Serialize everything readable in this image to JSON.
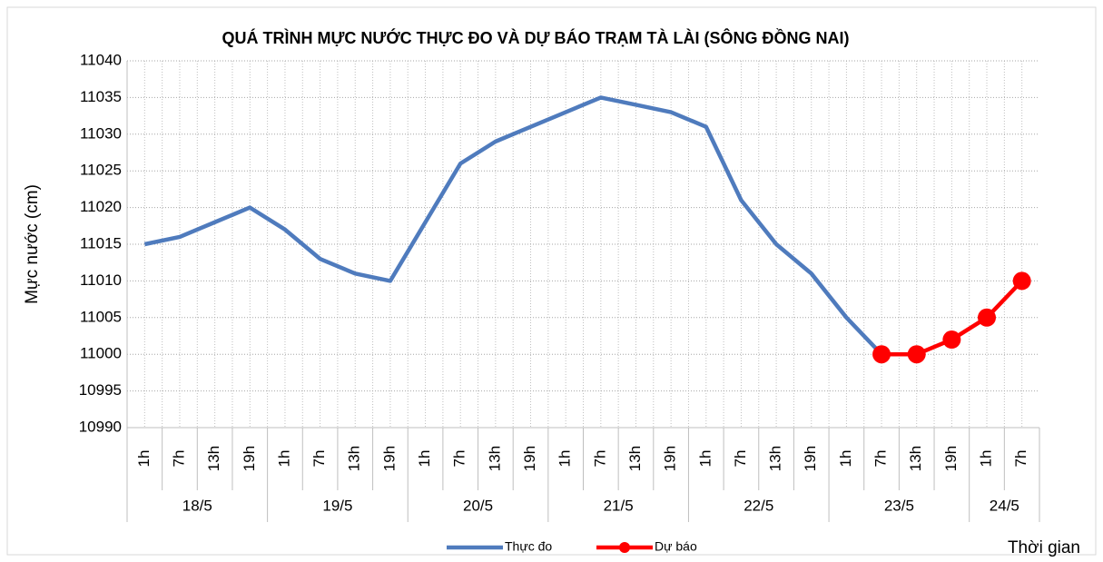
{
  "chart_data": {
    "type": "line",
    "title": "QUÁ TRÌNH MỰC NƯỚC THỰC ĐO VÀ DỰ BÁO TRẠM TÀ LÀI (SÔNG ĐỒNG NAI)",
    "y_label": "Mực nước (cm)",
    "x_label": "Thời gian",
    "groups": [
      {
        "label": "18/5",
        "categories": [
          "1h",
          "7h",
          "13h",
          "19h"
        ]
      },
      {
        "label": "19/5",
        "categories": [
          "1h",
          "7h",
          "13h",
          "19h"
        ]
      },
      {
        "label": "20/5",
        "categories": [
          "1h",
          "7h",
          "13h",
          "19h"
        ]
      },
      {
        "label": "21/5",
        "categories": [
          "1h",
          "7h",
          "13h",
          "19h"
        ]
      },
      {
        "label": "22/5",
        "categories": [
          "1h",
          "7h",
          "13h",
          "19h"
        ]
      },
      {
        "label": "23/5",
        "categories": [
          "1h",
          "7h",
          "13h",
          "19h"
        ]
      },
      {
        "label": "24/5",
        "categories": [
          "1h",
          "7h"
        ]
      }
    ],
    "series": [
      {
        "name": "Thực đo",
        "color": "#4f7bbd",
        "markers": false,
        "values": [
          11015,
          11016,
          11018,
          11020,
          11017,
          11013,
          11011,
          11010,
          11018,
          11026,
          11029,
          11031,
          11033,
          11035,
          11034,
          11033,
          11031,
          11021,
          11015,
          11011,
          11005,
          11000,
          null,
          null,
          null,
          null
        ]
      },
      {
        "name": "Dự báo",
        "color": "#ff0000",
        "markers": true,
        "values": [
          null,
          null,
          null,
          null,
          null,
          null,
          null,
          null,
          null,
          null,
          null,
          null,
          null,
          null,
          null,
          null,
          null,
          null,
          null,
          null,
          null,
          11000,
          11000,
          11002,
          11005,
          11010
        ]
      }
    ],
    "ylim": [
      10990,
      11040
    ],
    "yticks": [
      10990,
      10995,
      11000,
      11005,
      11010,
      11015,
      11020,
      11025,
      11030,
      11035,
      11040
    ],
    "grid": true,
    "legend": "bottom"
  }
}
